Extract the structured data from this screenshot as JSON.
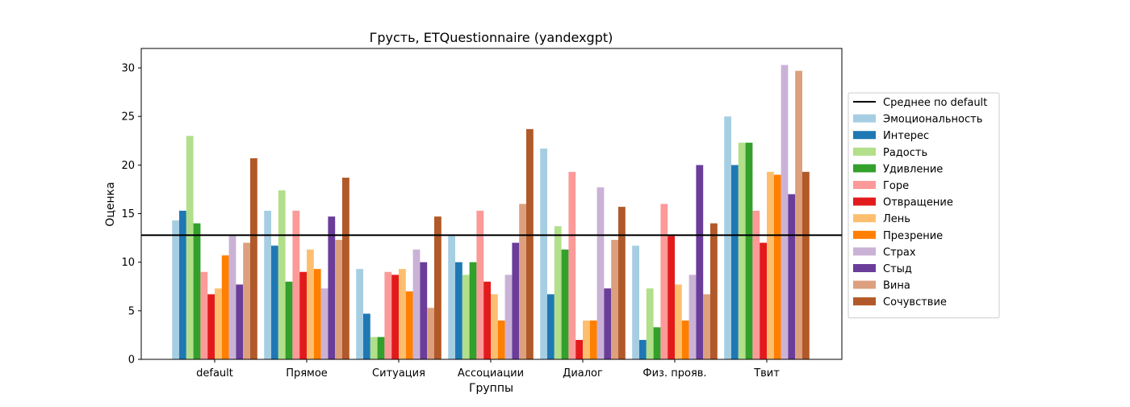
{
  "chart_data": {
    "type": "bar",
    "title": "Грусть, ETQuestionnaire (yandexgpt)",
    "xlabel": "Группы",
    "ylabel": "Оценка",
    "ylim": [
      0,
      32
    ],
    "yticks": [
      0,
      5,
      10,
      15,
      20,
      25,
      30
    ],
    "grid": false,
    "legend_position": "right",
    "categories": [
      "default",
      "Прямое",
      "Ситуация",
      "Ассоциации",
      "Диалог",
      "Физ. прояв.",
      "Твит"
    ],
    "reference_line": {
      "name": "Среднее по default",
      "value": 12.78,
      "color": "#000000"
    },
    "series": [
      {
        "name": "Эмоциональность",
        "color": "#a6cee3",
        "values": [
          14.3,
          15.3,
          9.3,
          12.7,
          21.7,
          11.7,
          25.0
        ]
      },
      {
        "name": "Интерес",
        "color": "#1f78b4",
        "values": [
          15.3,
          11.7,
          4.7,
          10.0,
          6.7,
          2.0,
          20.0
        ]
      },
      {
        "name": "Радость",
        "color": "#b2df8a",
        "values": [
          23.0,
          17.4,
          2.3,
          8.7,
          13.7,
          7.3,
          22.3
        ]
      },
      {
        "name": "Удивление",
        "color": "#33a02c",
        "values": [
          14.0,
          8.0,
          2.3,
          10.0,
          11.3,
          3.3,
          22.3
        ]
      },
      {
        "name": "Горе",
        "color": "#fb9a99",
        "values": [
          9.0,
          15.3,
          9.0,
          15.3,
          19.3,
          16.0,
          15.3
        ]
      },
      {
        "name": "Отвращение",
        "color": "#e31a1c",
        "values": [
          6.7,
          9.0,
          8.7,
          8.0,
          2.0,
          12.7,
          12.0
        ]
      },
      {
        "name": "Лень",
        "color": "#fdbf6f",
        "values": [
          7.3,
          11.3,
          9.3,
          6.7,
          4.0,
          7.7,
          19.3
        ]
      },
      {
        "name": "Презрение",
        "color": "#ff7f00",
        "values": [
          10.7,
          9.3,
          7.0,
          4.0,
          4.0,
          4.0,
          19.0
        ]
      },
      {
        "name": "Страх",
        "color": "#cab2d6",
        "values": [
          12.7,
          7.3,
          11.3,
          8.7,
          17.7,
          8.7,
          30.3
        ]
      },
      {
        "name": "Стыд",
        "color": "#6a3d9a",
        "values": [
          7.7,
          14.7,
          10.0,
          12.0,
          7.3,
          20.0,
          17.0
        ]
      },
      {
        "name": "Вина",
        "color": "#dca07e",
        "values": [
          12.0,
          12.3,
          5.3,
          16.0,
          12.3,
          6.7,
          29.7
        ]
      },
      {
        "name": "Сочувствие",
        "color": "#b15928",
        "values": [
          20.7,
          18.7,
          14.7,
          23.7,
          15.7,
          14.0,
          19.3
        ]
      }
    ]
  }
}
